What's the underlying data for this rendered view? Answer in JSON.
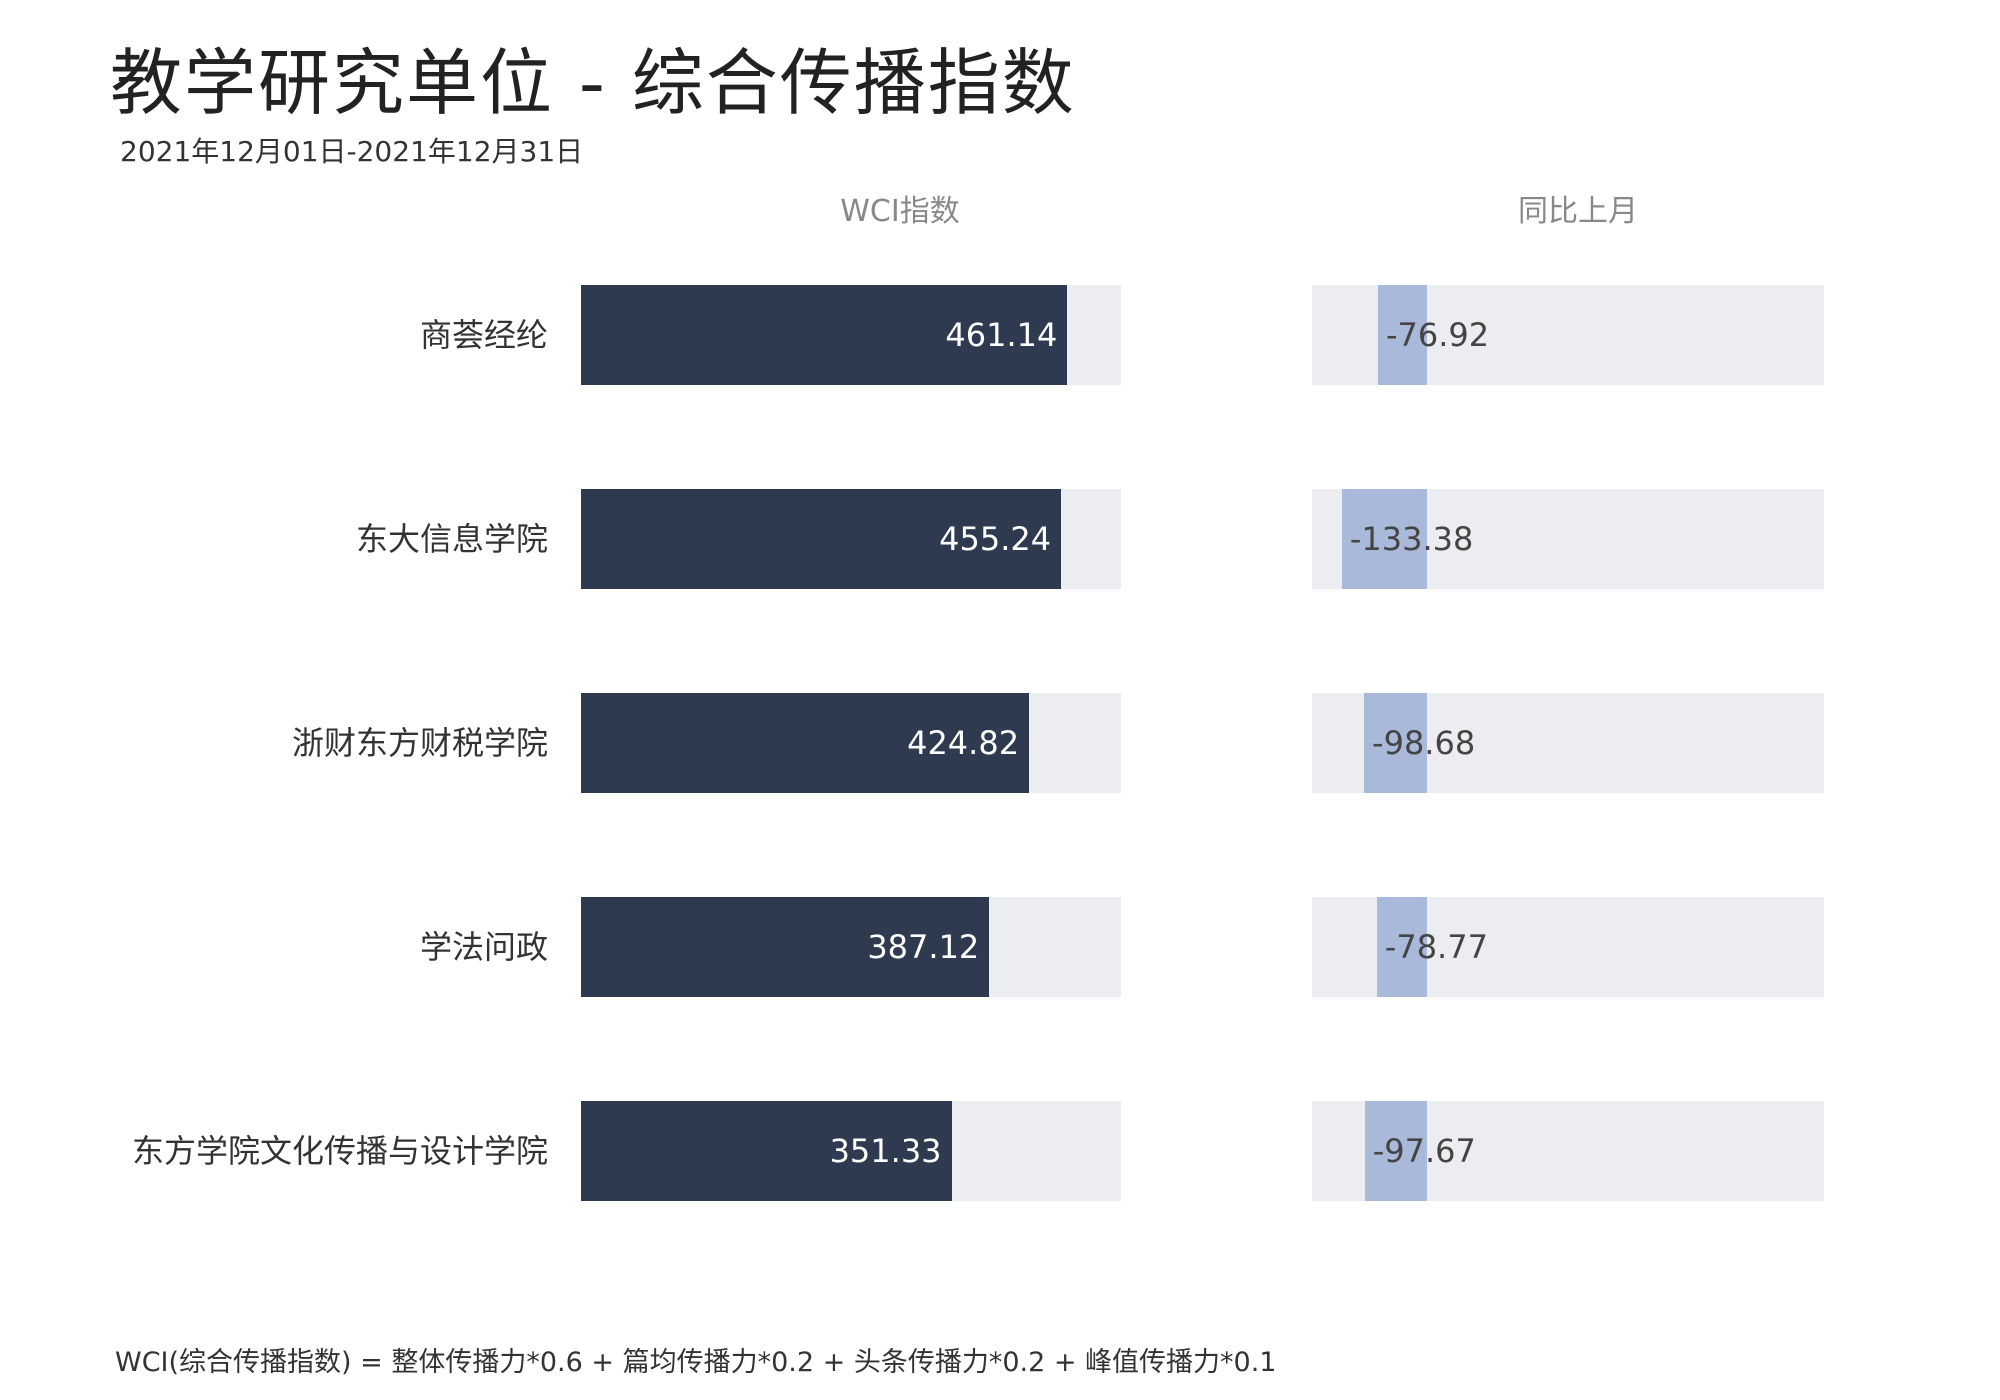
{
  "title": "教学研究单位 - 综合传播指数",
  "subtitle": "2021年12月01日-2021年12月31日",
  "footnote": "WCI(综合传播指数) = 整体传播力*0.6 + 篇均传播力*0.2 + 头条传播力*0.2 + 峰值传播力*0.1",
  "colors": {
    "main_bar": "#2d3a50",
    "delta_bar": "#a8b9da",
    "track": "#ecedf1"
  },
  "chart_data": {
    "type": "bar",
    "orientation": "horizontal",
    "categories": [
      "商荟经纶",
      "东大信息学院",
      "浙财东方财税学院",
      "学法问政",
      "东方学院文化传播与设计学院"
    ],
    "series": [
      {
        "name": "WCI指数",
        "values": [
          461.14,
          455.24,
          424.82,
          387.12,
          351.33
        ]
      },
      {
        "name": "同比上月",
        "values": [
          -76.92,
          -133.38,
          -98.68,
          -78.77,
          -97.67
        ]
      }
    ],
    "value_labels_main": [
      "461.14",
      "455.24",
      "424.82",
      "387.12",
      "351.33"
    ],
    "value_labels_delta": [
      "-76.92",
      "-133.38",
      "-98.68",
      "-78.77",
      "-97.67"
    ],
    "main_xlim": [
      0,
      512
    ],
    "delta_xlim": [
      -180,
      620
    ]
  }
}
